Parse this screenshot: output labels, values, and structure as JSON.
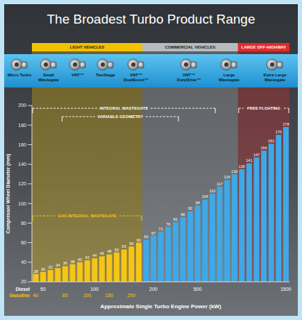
{
  "chart_data": {
    "type": "bar",
    "title": "The Broadest Turbo Product Range",
    "y_label": "Compressor Wheel Diameter (mm)",
    "x_label": "Approximate Single Turbo Engine Power (kW)",
    "values": [
      28,
      30,
      32,
      34,
      36,
      38,
      40,
      42,
      44,
      46,
      48,
      50,
      53,
      56,
      60,
      63,
      67,
      71,
      76,
      81,
      86,
      92,
      98,
      104,
      110,
      117,
      124,
      130,
      135,
      141,
      147,
      154,
      161,
      170,
      178
    ],
    "colors": [
      "#f5c518",
      "#f5c518",
      "#f5c518",
      "#f5c518",
      "#f5c518",
      "#f5c518",
      "#f5c518",
      "#f5c518",
      "#f5c518",
      "#f5c518",
      "#f5c518",
      "#f5c518",
      "#f5c518",
      "#f5c518",
      "#f5c518",
      "#3da9e8",
      "#3da9e8",
      "#3da9e8",
      "#3da9e8",
      "#3da9e8",
      "#3da9e8",
      "#3da9e8",
      "#3da9e8",
      "#3da9e8",
      "#3da9e8",
      "#3da9e8",
      "#3da9e8",
      "#3da9e8",
      "#3da9e8",
      "#3da9e8",
      "#3da9e8",
      "#3da9e8",
      "#3da9e8",
      "#3da9e8",
      "#3da9e8"
    ],
    "data_labels": true,
    "grid": false,
    "ylim": [
      20,
      200
    ],
    "yticks": [
      20,
      40,
      60,
      80,
      100,
      120,
      140,
      160,
      180,
      200
    ],
    "category_rows": [
      {
        "name": "Diesel",
        "labels": [
          null,
          "50",
          null,
          null,
          null,
          null,
          null,
          null,
          "100",
          null,
          null,
          null,
          null,
          null,
          null,
          null,
          "200",
          null,
          null,
          null,
          null,
          null,
          "500",
          null,
          null,
          null,
          null,
          null,
          null,
          null,
          null,
          null,
          null,
          null,
          "1500"
        ]
      },
      {
        "name": "Gasoline",
        "labels": [
          "40",
          null,
          null,
          null,
          "80",
          null,
          null,
          "100",
          null,
          null,
          "150",
          null,
          null,
          "250",
          null,
          null,
          null,
          null,
          null,
          null,
          null,
          null,
          null,
          null,
          null,
          null,
          null,
          null,
          null,
          null,
          null,
          null,
          null,
          null,
          null
        ]
      }
    ],
    "regions": [
      {
        "label": "LIGHT VEHICLES",
        "color": "#f2c200",
        "from": 0,
        "to": 14
      },
      {
        "label": "COMMERCIAL VEHICLES",
        "color": "#b8bbbe",
        "from": 15,
        "to": 27
      },
      {
        "label": "LARGE OFF-HIGHWAY",
        "color": "#e32b2b",
        "from": 28,
        "to": 34
      }
    ],
    "brackets": [
      {
        "label": "INTEGRAL WASTEGATE",
        "from": 0,
        "to": 24
      },
      {
        "label": "VARIABLE GEOMETRY",
        "from": 4,
        "to": 19
      },
      {
        "label": "FREE FLOATING",
        "from": 28,
        "to": 34
      },
      {
        "label": "GAS INTEGRAL WASTEGATE",
        "from": 0,
        "to": 14
      }
    ],
    "products": [
      "Micro Turbo",
      "Small Wastegate",
      "VNT™",
      "TwoStage",
      "VNT™ DualBoost™",
      "VNT™ DutyDrive™",
      "Large Wastegate",
      "Extra Large Wastegate"
    ]
  }
}
